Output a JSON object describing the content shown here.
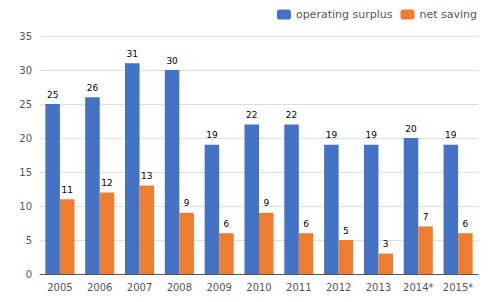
{
  "chart_data": {
    "type": "bar",
    "categories": [
      "2005",
      "2006",
      "2007",
      "2008",
      "2009",
      "2010",
      "2011",
      "2012",
      "2013",
      "2014*",
      "2015*"
    ],
    "series": [
      {
        "name": "operating surplus",
        "color": "#4472C4",
        "values": [
          25,
          26,
          31,
          30,
          19,
          22,
          22,
          19,
          19,
          20,
          19
        ]
      },
      {
        "name": "net saving",
        "color": "#ED7D31",
        "values": [
          11,
          12,
          13,
          9,
          6,
          9,
          6,
          5,
          3,
          7,
          6
        ]
      }
    ],
    "ylim": [
      0,
      35
    ],
    "yticks": [
      0,
      5,
      10,
      15,
      20,
      25,
      30,
      35
    ],
    "grid": true,
    "legend": "upper right",
    "data_labels": true
  }
}
